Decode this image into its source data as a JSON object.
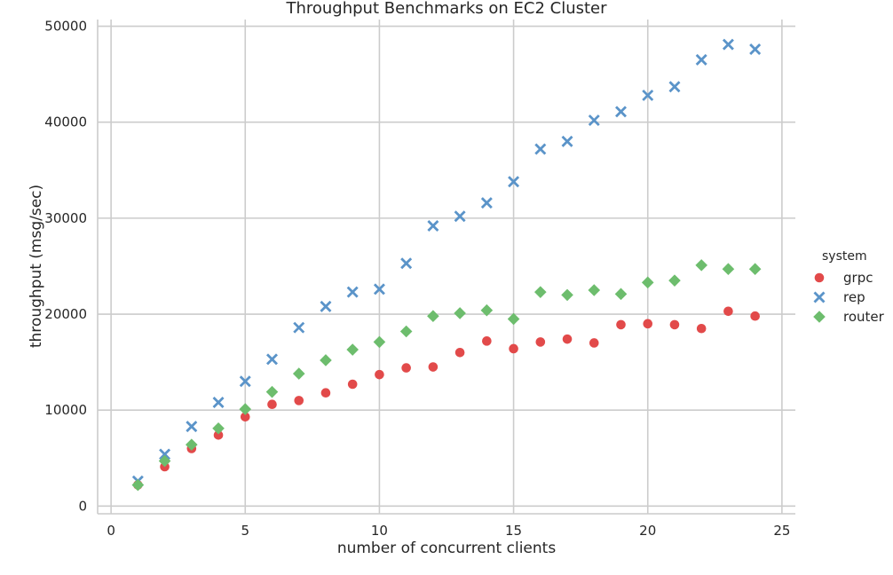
{
  "chart_data": {
    "type": "scatter",
    "title": "Throughput Benchmarks on EC2 Cluster",
    "xlabel": "number of concurrent clients",
    "ylabel": "throughput (msg/sec)",
    "xlim": [
      -0.5,
      25.5
    ],
    "ylim": [
      -800,
      50700
    ],
    "xticks": [
      0,
      5,
      10,
      15,
      20,
      25
    ],
    "yticks": [
      0,
      10000,
      20000,
      30000,
      40000,
      50000
    ],
    "grid": true,
    "legend": {
      "title": "system",
      "placement": "right"
    },
    "series": [
      {
        "name": "grpc",
        "marker": "circle",
        "color": "#e24a4a",
        "points": [
          [
            1,
            2200
          ],
          [
            2,
            4100
          ],
          [
            3,
            6000
          ],
          [
            4,
            7400
          ],
          [
            5,
            9300
          ],
          [
            6,
            10600
          ],
          [
            7,
            11000
          ],
          [
            8,
            11800
          ],
          [
            9,
            12700
          ],
          [
            10,
            13700
          ],
          [
            11,
            14400
          ],
          [
            12,
            14500
          ],
          [
            13,
            16000
          ],
          [
            14,
            17200
          ],
          [
            15,
            16400
          ],
          [
            16,
            17100
          ],
          [
            17,
            17400
          ],
          [
            18,
            17000
          ],
          [
            19,
            18900
          ],
          [
            20,
            19000
          ],
          [
            21,
            18900
          ],
          [
            22,
            18500
          ],
          [
            23,
            20300
          ],
          [
            24,
            19800
          ]
        ]
      },
      {
        "name": "rep",
        "marker": "x",
        "color": "#5b94c9",
        "points": [
          [
            1,
            2600
          ],
          [
            2,
            5400
          ],
          [
            3,
            8300
          ],
          [
            4,
            10800
          ],
          [
            5,
            13000
          ],
          [
            6,
            15300
          ],
          [
            7,
            18600
          ],
          [
            8,
            20800
          ],
          [
            9,
            22300
          ],
          [
            10,
            22600
          ],
          [
            11,
            25300
          ],
          [
            12,
            29200
          ],
          [
            13,
            30200
          ],
          [
            14,
            31600
          ],
          [
            15,
            33800
          ],
          [
            16,
            37200
          ],
          [
            17,
            38000
          ],
          [
            18,
            40200
          ],
          [
            19,
            41100
          ],
          [
            20,
            42800
          ],
          [
            21,
            43700
          ],
          [
            22,
            46500
          ],
          [
            23,
            48100
          ],
          [
            24,
            47600
          ]
        ]
      },
      {
        "name": "router",
        "marker": "diamond",
        "color": "#6dbd6d",
        "points": [
          [
            1,
            2200
          ],
          [
            2,
            4700
          ],
          [
            3,
            6400
          ],
          [
            4,
            8100
          ],
          [
            5,
            10100
          ],
          [
            6,
            11900
          ],
          [
            7,
            13800
          ],
          [
            8,
            15200
          ],
          [
            9,
            16300
          ],
          [
            10,
            17100
          ],
          [
            11,
            18200
          ],
          [
            12,
            19800
          ],
          [
            13,
            20100
          ],
          [
            14,
            20400
          ],
          [
            15,
            19500
          ],
          [
            16,
            22300
          ],
          [
            17,
            22000
          ],
          [
            18,
            22500
          ],
          [
            19,
            22100
          ],
          [
            20,
            23300
          ],
          [
            21,
            23500
          ],
          [
            22,
            25100
          ],
          [
            23,
            24700
          ],
          [
            24,
            24700
          ]
        ]
      }
    ]
  }
}
